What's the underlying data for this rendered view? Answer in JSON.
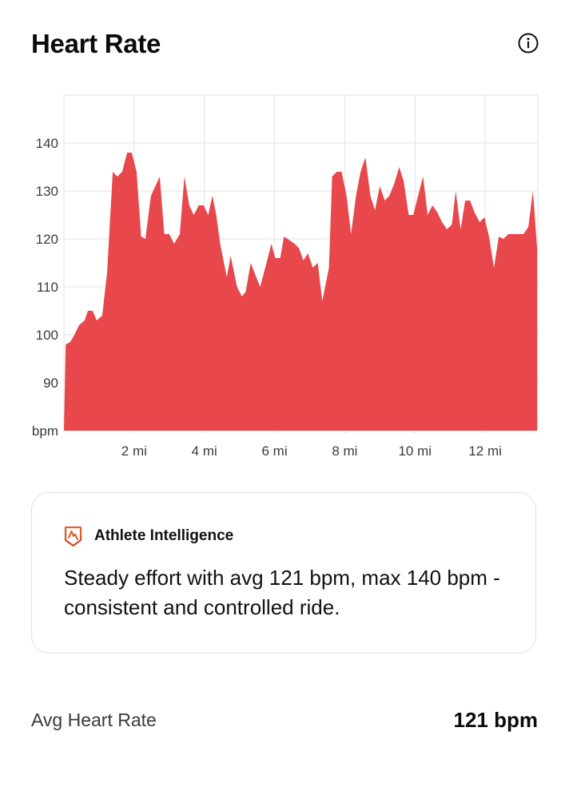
{
  "header": {
    "title": "Heart Rate",
    "info_icon": "info-circle-icon"
  },
  "colors": {
    "area_fill": "#e8474b",
    "grid": "#e2e2e2",
    "axis_text": "#3a3a3a",
    "brand_orange": "#e0582a",
    "card_border": "#dedede"
  },
  "chart_data": {
    "type": "area",
    "title": "Heart Rate",
    "xlabel": "",
    "ylabel": "bpm",
    "x_unit": "mi",
    "xlim": [
      0,
      13.5
    ],
    "ylim": [
      80,
      150
    ],
    "grid": true,
    "legend": null,
    "y_ticks": [
      {
        "value": 80,
        "label": "bpm"
      },
      {
        "value": 90,
        "label": "90"
      },
      {
        "value": 100,
        "label": "100"
      },
      {
        "value": 110,
        "label": "110"
      },
      {
        "value": 120,
        "label": "120"
      },
      {
        "value": 130,
        "label": "130"
      },
      {
        "value": 140,
        "label": "140"
      }
    ],
    "x_ticks": [
      {
        "value": 2,
        "label": "2 mi"
      },
      {
        "value": 4,
        "label": "4 mi"
      },
      {
        "value": 6,
        "label": "6 mi"
      },
      {
        "value": 8,
        "label": "8 mi"
      },
      {
        "value": 10,
        "label": "10 mi"
      },
      {
        "value": 12,
        "label": "12 mi"
      }
    ],
    "series": [
      {
        "name": "Heart Rate",
        "x": [
          0.0,
          0.05,
          0.18,
          0.3,
          0.43,
          0.59,
          0.68,
          0.82,
          0.93,
          1.09,
          1.23,
          1.39,
          1.52,
          1.66,
          1.8,
          1.93,
          2.07,
          2.2,
          2.32,
          2.48,
          2.73,
          2.86,
          3.0,
          3.14,
          3.3,
          3.43,
          3.57,
          3.7,
          3.84,
          3.98,
          4.11,
          4.23,
          4.34,
          4.45,
          4.64,
          4.75,
          4.93,
          5.07,
          5.18,
          5.32,
          5.48,
          5.59,
          5.77,
          5.91,
          6.02,
          6.16,
          6.27,
          6.57,
          6.7,
          6.82,
          6.95,
          7.09,
          7.23,
          7.36,
          7.55,
          7.64,
          7.77,
          7.91,
          8.05,
          8.18,
          8.32,
          8.45,
          8.59,
          8.73,
          8.86,
          9.0,
          9.14,
          9.27,
          9.41,
          9.55,
          9.68,
          9.82,
          9.95,
          10.09,
          10.23,
          10.36,
          10.5,
          10.64,
          10.77,
          10.91,
          11.05,
          11.16,
          11.3,
          11.43,
          11.57,
          11.7,
          11.84,
          11.98,
          12.11,
          12.25,
          12.39,
          12.52,
          12.66,
          12.8,
          12.95,
          13.09,
          13.23,
          13.36,
          13.48
        ],
        "values": [
          80,
          98,
          98.5,
          100,
          102,
          103,
          105,
          105,
          103,
          104,
          113,
          134,
          133,
          134,
          138,
          138,
          134,
          120.5,
          120,
          129,
          133,
          121,
          121,
          119,
          121,
          133,
          127,
          125,
          127,
          127,
          125,
          129,
          125,
          119,
          112,
          116.5,
          110,
          108,
          109,
          115,
          112,
          110,
          115,
          119,
          116,
          116,
          120.5,
          119,
          118,
          115.5,
          117,
          114,
          115,
          107,
          114,
          133,
          134,
          134,
          129,
          121,
          129,
          134,
          137,
          129,
          126,
          131,
          128,
          129,
          131.5,
          135,
          132,
          125,
          125,
          129,
          133,
          125,
          127,
          125.5,
          123.5,
          122,
          123,
          130,
          122,
          128,
          128,
          125.5,
          123.5,
          124.5,
          120.5,
          114,
          120.5,
          120,
          121,
          121,
          121,
          121,
          122.5,
          130,
          118
        ]
      }
    ],
    "summary": {
      "avg": 121,
      "max": 140,
      "unit": "bpm"
    }
  },
  "insight_card": {
    "icon": "athlete-intelligence-shield-icon",
    "title": "Athlete Intelligence",
    "body": "Steady effort with avg 121 bpm, max 140 bpm - consistent and controlled ride."
  },
  "stats": {
    "avg_label": "Avg Heart Rate",
    "avg_value": "121 bpm"
  }
}
